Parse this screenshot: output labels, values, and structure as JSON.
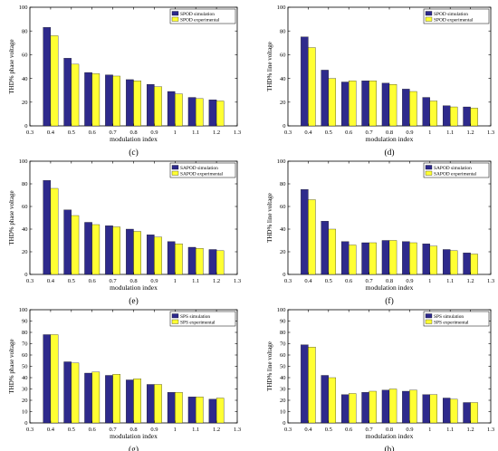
{
  "colors": {
    "simulation": "#2e2a8c",
    "experimental": "#ffff33",
    "axis": "#000000"
  },
  "chart_data": [
    {
      "type": "bar",
      "panel_label": "(c)",
      "xlabel": "modulation index",
      "ylabel": "THD% phase voltage",
      "xlim": [
        0.3,
        1.3
      ],
      "ylim": [
        0,
        100
      ],
      "xticks": [
        "0.3",
        "0.4",
        "0.5",
        "0.6",
        "0.7",
        "0.8",
        "0.9",
        "1",
        "1.1",
        "1.2",
        "1.3"
      ],
      "yticks": [
        "0",
        "20",
        "40",
        "60",
        "80",
        "100"
      ],
      "legend_position": "top-right",
      "grid": false,
      "categories": [
        "0.4",
        "0.5",
        "0.6",
        "0.7",
        "0.8",
        "0.9",
        "1",
        "1.1",
        "1.2"
      ],
      "series": [
        {
          "name": "SPOD simulation",
          "values": [
            83,
            57,
            45,
            43,
            39,
            35,
            29,
            24,
            22
          ]
        },
        {
          "name": "SPOD experimental",
          "values": [
            76,
            52,
            44,
            42,
            38,
            33,
            27,
            23,
            21
          ]
        }
      ]
    },
    {
      "type": "bar",
      "panel_label": "(d)",
      "xlabel": "modulation index",
      "ylabel": "THD% line voltage",
      "xlim": [
        0.3,
        1.3
      ],
      "ylim": [
        0,
        100
      ],
      "xticks": [
        "0.3",
        "0.4",
        "0.5",
        "0.6",
        "0.7",
        "0.8",
        "0.9",
        "1",
        "1.1",
        "1.2",
        "1.3"
      ],
      "yticks": [
        "0",
        "20",
        "40",
        "60",
        "80",
        "100"
      ],
      "legend_position": "top-right",
      "grid": false,
      "categories": [
        "0.4",
        "0.5",
        "0.6",
        "0.7",
        "0.8",
        "0.9",
        "1",
        "1.1",
        "1.2"
      ],
      "series": [
        {
          "name": "SPOD simulation",
          "values": [
            75,
            47,
            37,
            38,
            36,
            31,
            24,
            17,
            16
          ]
        },
        {
          "name": "SPOD experimental",
          "values": [
            66,
            40,
            38,
            38,
            35,
            29,
            21,
            16,
            15
          ]
        }
      ]
    },
    {
      "type": "bar",
      "panel_label": "(e)",
      "xlabel": "modulation index",
      "ylabel": "THD% phase voltage",
      "xlim": [
        0.3,
        1.3
      ],
      "ylim": [
        0,
        100
      ],
      "xticks": [
        "0.3",
        "0.4",
        "0.5",
        "0.6",
        "0.7",
        "0.8",
        "0.9",
        "1",
        "1.1",
        "1.2",
        "1.3"
      ],
      "yticks": [
        "0",
        "20",
        "40",
        "60",
        "80",
        "100"
      ],
      "legend_position": "top-right",
      "grid": false,
      "categories": [
        "0.4",
        "0.5",
        "0.6",
        "0.7",
        "0.8",
        "0.9",
        "1",
        "1.1",
        "1.2"
      ],
      "series": [
        {
          "name": "SAPOD simulation",
          "values": [
            83,
            57,
            46,
            43,
            40,
            35,
            29,
            24,
            22
          ]
        },
        {
          "name": "SAPOD experimental",
          "values": [
            76,
            52,
            44,
            42,
            38,
            33,
            27,
            23,
            21
          ]
        }
      ]
    },
    {
      "type": "bar",
      "panel_label": "(f)",
      "xlabel": "modulation index",
      "ylabel": "THD% line voltage",
      "xlim": [
        0.3,
        1.3
      ],
      "ylim": [
        0,
        100
      ],
      "xticks": [
        "0.3",
        "0.4",
        "0.5",
        "0.6",
        "0.7",
        "0.8",
        "0.9",
        "1",
        "1.1",
        "1.2",
        "1.3"
      ],
      "yticks": [
        "0",
        "20",
        "40",
        "60",
        "80",
        "100"
      ],
      "legend_position": "top-right",
      "grid": false,
      "categories": [
        "0.4",
        "0.5",
        "0.6",
        "0.7",
        "0.8",
        "0.9",
        "1",
        "1.1",
        "1.2"
      ],
      "series": [
        {
          "name": "SAPOD simulation",
          "values": [
            75,
            47,
            29,
            28,
            30,
            29,
            27,
            22,
            19
          ]
        },
        {
          "name": "SAPOD experimental",
          "values": [
            66,
            40,
            26,
            28,
            30,
            28,
            25,
            21,
            18
          ]
        }
      ]
    },
    {
      "type": "bar",
      "panel_label": "(g)",
      "xlabel": "modulation index",
      "ylabel": "THD% phase voltage",
      "xlim": [
        0.3,
        1.3
      ],
      "ylim": [
        0,
        100
      ],
      "xticks": [
        "0.3",
        "0.4",
        "0.5",
        "0.6",
        "0.7",
        "0.8",
        "0.9",
        "1",
        "1.1",
        "1.2",
        "1.3"
      ],
      "yticks": [
        "0",
        "10",
        "20",
        "30",
        "40",
        "50",
        "60",
        "70",
        "80",
        "90",
        "100"
      ],
      "legend_position": "top-right",
      "grid": false,
      "categories": [
        "0.4",
        "0.5",
        "0.6",
        "0.7",
        "0.8",
        "0.9",
        "1",
        "1.1",
        "1.2"
      ],
      "series": [
        {
          "name": "SPS simulation",
          "values": [
            78,
            54,
            44,
            42,
            38,
            34,
            27,
            23,
            21
          ]
        },
        {
          "name": "SPS experimental",
          "values": [
            78,
            53,
            45,
            43,
            39,
            34,
            27,
            23,
            22
          ]
        }
      ]
    },
    {
      "type": "bar",
      "panel_label": "(h)",
      "xlabel": "modulation index",
      "ylabel": "THD% line voltage",
      "xlim": [
        0.3,
        1.3
      ],
      "ylim": [
        0,
        100
      ],
      "xticks": [
        "0.3",
        "0.4",
        "0.5",
        "0.6",
        "0.7",
        "0.8",
        "0.9",
        "1",
        "1.1",
        "1.2",
        "1.3"
      ],
      "yticks": [
        "0",
        "10",
        "20",
        "30",
        "40",
        "50",
        "60",
        "70",
        "80",
        "90",
        "100"
      ],
      "legend_position": "top-right",
      "grid": false,
      "categories": [
        "0.4",
        "0.5",
        "0.6",
        "0.7",
        "0.8",
        "0.9",
        "1",
        "1.1",
        "1.2"
      ],
      "series": [
        {
          "name": "SPS simulation",
          "values": [
            69,
            42,
            25,
            27,
            29,
            28,
            25,
            22,
            18
          ]
        },
        {
          "name": "SPS experimental",
          "values": [
            67,
            40,
            26,
            28,
            30,
            29,
            25,
            21,
            18
          ]
        }
      ]
    }
  ]
}
